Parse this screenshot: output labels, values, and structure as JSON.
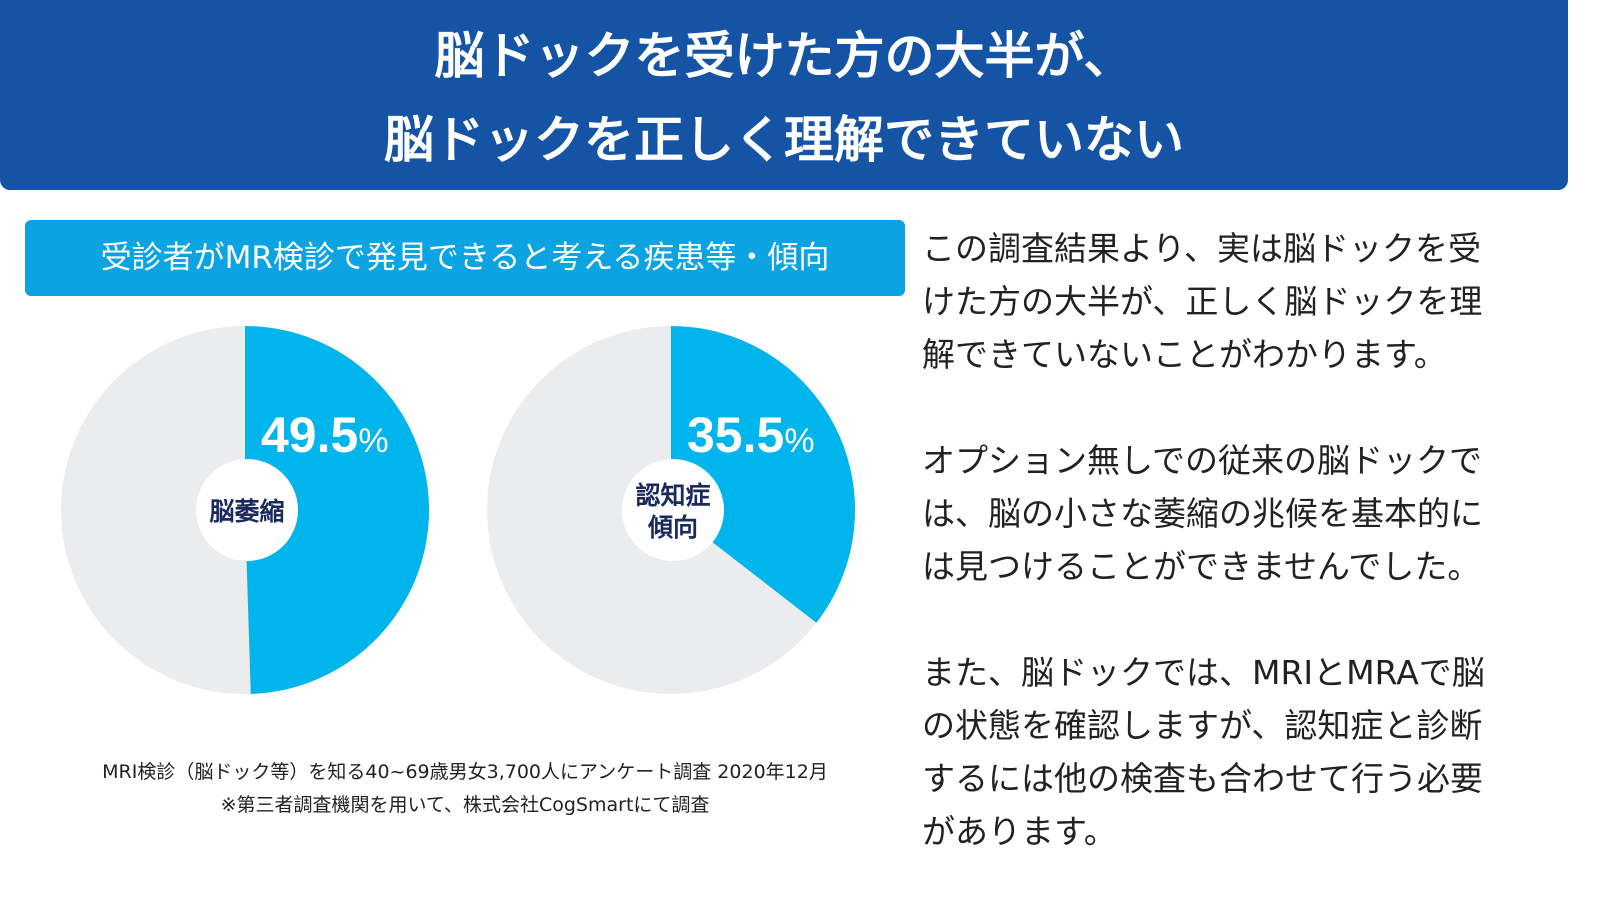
{
  "header": {
    "lines": [
      "脳ドックを受けた方の大半が、",
      "脳ドックを正しく理解できていない"
    ]
  },
  "band_title": "受診者がMR検診で発見できると考える疾患等・傾向",
  "colors": {
    "header": "#1554a5",
    "band": "#0ba3e2",
    "slice": "#00b4ec",
    "rest": "#ebeced",
    "label": "#1a2a5e"
  },
  "chart_data": [
    {
      "type": "pie",
      "label_lines": [
        "脳萎縮"
      ],
      "value": 49.5,
      "value_text": "49.5",
      "unit": "%"
    },
    {
      "type": "pie",
      "label_lines": [
        "認知症",
        "傾向"
      ],
      "value": 35.5,
      "value_text": "35.5",
      "unit": "%"
    }
  ],
  "notes": [
    "MRI検診（脳ドック等）を知る40~69歳男女3,700人にアンケート調査 2020年12月",
    "※第三者調査機関を用いて、株式会社CogSmartにて調査"
  ],
  "body": [
    [
      "この調査結果より、実は脳ドックを受",
      "けた方の大半が、正しく脳ドックを理",
      "解できていないことがわかります。"
    ],
    [
      "オプション無しでの従来の脳ドックで",
      "は、脳の小さな萎縮の兆候を基本的に",
      "は見つけることができませんでした。"
    ],
    [
      "また、脳ドックでは、MRIとMRAで脳",
      "の状態を確認しますが、認知症と診断",
      "するには他の検査も合わせて行う必要",
      "があります。"
    ]
  ]
}
